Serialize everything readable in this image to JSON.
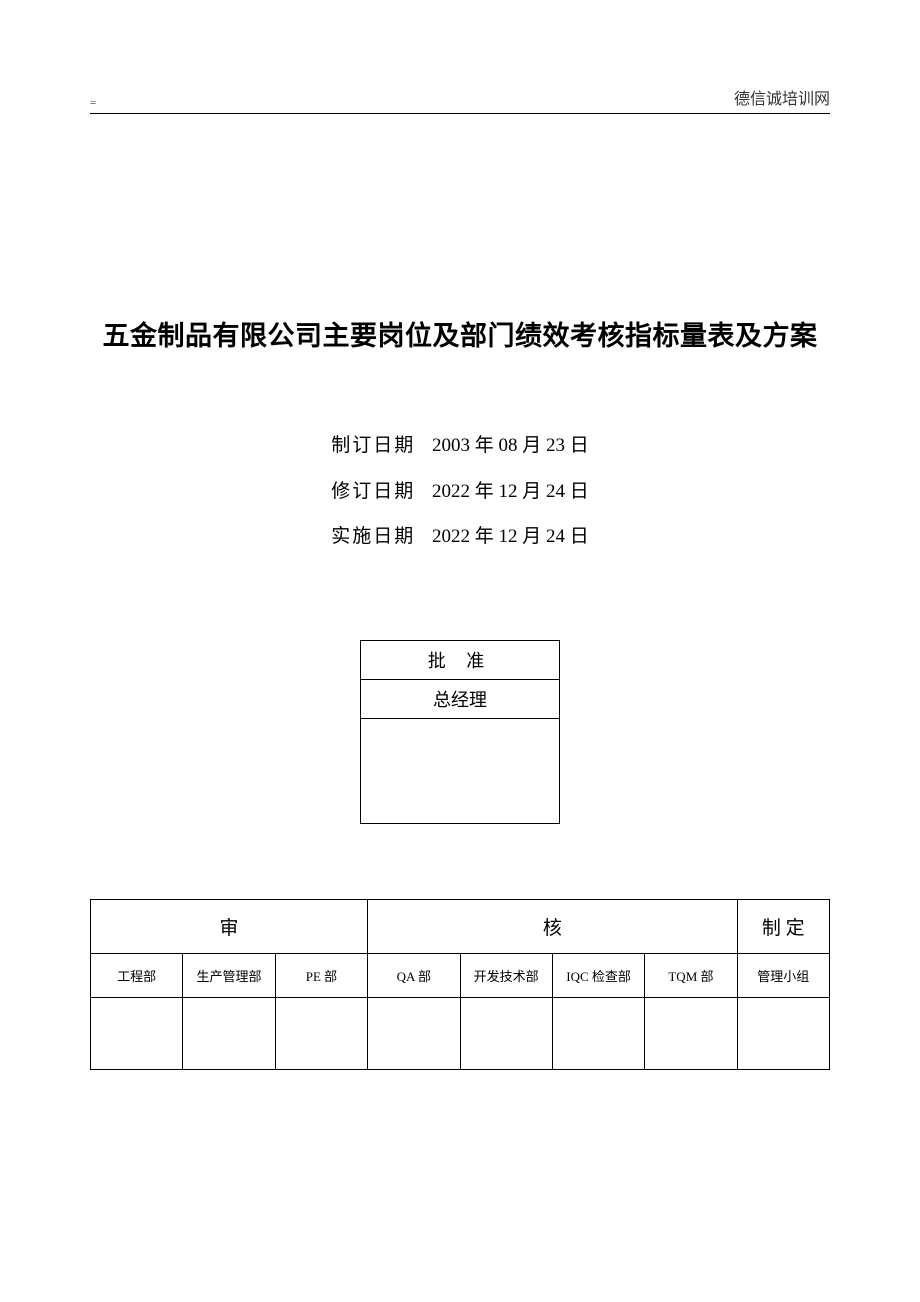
{
  "header": {
    "left_mark": "=",
    "right_text": "德信诚培训网"
  },
  "title": "五金制品有限公司主要岗位及部门绩效考核指标量表及方案",
  "dates": {
    "created_label": "制订日期",
    "created_value": "2003 年 08 月 23 日",
    "revised_label": "修订日期",
    "revised_value": "2022 年 12 月 24 日",
    "effective_label": "实施日期",
    "effective_value": "2022 年 12 月 24 日"
  },
  "approval": {
    "label": "批 准",
    "role": "总经理"
  },
  "audit": {
    "review_label": "审",
    "check_label": "核",
    "establish_label": "制 定",
    "departments": [
      "工程部",
      "生产管理部",
      "PE 部",
      "QA 部",
      "开发技术部",
      "IQC 检查部",
      "TQM 部",
      "管理小组"
    ]
  },
  "colors": {
    "text": "#333333",
    "border": "#000000",
    "background": "#ffffff"
  }
}
